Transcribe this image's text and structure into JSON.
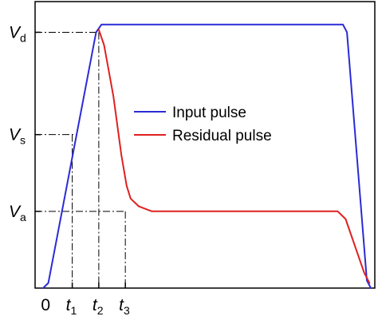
{
  "chart_data": {
    "type": "line",
    "title": "",
    "xlabel": "",
    "ylabel": "",
    "grid": false,
    "legend_position": "center",
    "x_ticks": [
      {
        "value": 0,
        "label": "0"
      },
      {
        "value": 1,
        "label": "t",
        "sub": "1"
      },
      {
        "value": 2,
        "label": "t",
        "sub": "2"
      },
      {
        "value": 3,
        "label": "t",
        "sub": "3"
      }
    ],
    "y_ticks": [
      {
        "value": 3,
        "label": "V",
        "sub": "a"
      },
      {
        "value": 6,
        "label": "V",
        "sub": "s"
      },
      {
        "value": 10,
        "label": "V",
        "sub": "d"
      }
    ],
    "xlim": [
      -0.4,
      12.4
    ],
    "ylim": [
      0,
      11.2
    ],
    "series": [
      {
        "name": "Input pulse",
        "color": "#2b2bd6",
        "points": [
          [
            -0.1,
            0
          ],
          [
            0.1,
            0.2
          ],
          [
            1.9,
            10
          ],
          [
            2.1,
            10.3
          ],
          [
            11.2,
            10.3
          ],
          [
            11.35,
            10
          ],
          [
            12.1,
            0.3
          ],
          [
            12.25,
            0
          ]
        ]
      },
      {
        "name": "Residual pulse",
        "color": "#e02020",
        "points": [
          [
            2.0,
            10.1
          ],
          [
            2.2,
            9.5
          ],
          [
            2.55,
            7.5
          ],
          [
            2.85,
            5.2
          ],
          [
            3.05,
            4.0
          ],
          [
            3.2,
            3.5
          ],
          [
            3.5,
            3.2
          ],
          [
            4.0,
            3.0
          ],
          [
            11.0,
            3.0
          ],
          [
            11.3,
            2.7
          ],
          [
            12.0,
            0.6
          ],
          [
            12.2,
            0.2
          ]
        ]
      }
    ]
  }
}
